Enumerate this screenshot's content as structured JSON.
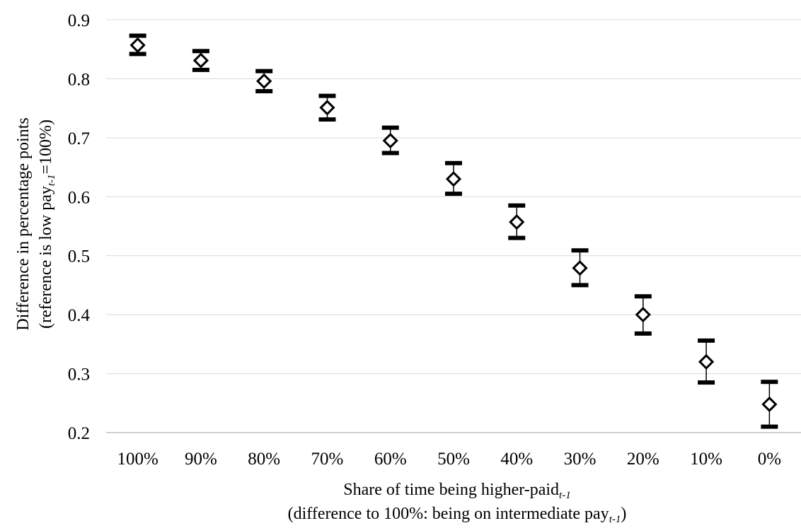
{
  "chart_data": {
    "type": "scatter",
    "categories": [
      "100%",
      "90%",
      "80%",
      "70%",
      "60%",
      "50%",
      "40%",
      "30%",
      "20%",
      "10%",
      "0%"
    ],
    "values": [
      0.857,
      0.831,
      0.796,
      0.751,
      0.695,
      0.63,
      0.557,
      0.479,
      0.4,
      0.32,
      0.248
    ],
    "error_low": [
      0.842,
      0.815,
      0.779,
      0.731,
      0.674,
      0.605,
      0.53,
      0.45,
      0.368,
      0.285,
      0.21
    ],
    "error_high": [
      0.873,
      0.847,
      0.813,
      0.771,
      0.717,
      0.657,
      0.585,
      0.509,
      0.431,
      0.356,
      0.286
    ],
    "y_ticks": [
      "0.2",
      "0.3",
      "0.4",
      "0.5",
      "0.6",
      "0.7",
      "0.8",
      "0.9"
    ],
    "ylim": [
      0.2,
      0.9
    ],
    "grid": true,
    "ylabel": {
      "line1": "Difference in percentage points",
      "line2_pre": "(reference is low pay",
      "line2_sub": "t-1",
      "line2_post": "=100%)"
    },
    "xlabel": {
      "line1_pre": "Share of time being higher-paid",
      "line1_sub": "t-1",
      "line2_pre": "(difference to 100%: being on intermediate pay",
      "line2_sub": "t-1",
      "line2_post": ")"
    },
    "marker": "hollow-diamond",
    "colors": {
      "marker": "#000000",
      "grid": "#d9d9d9",
      "axis": "#bfbfbf"
    }
  }
}
